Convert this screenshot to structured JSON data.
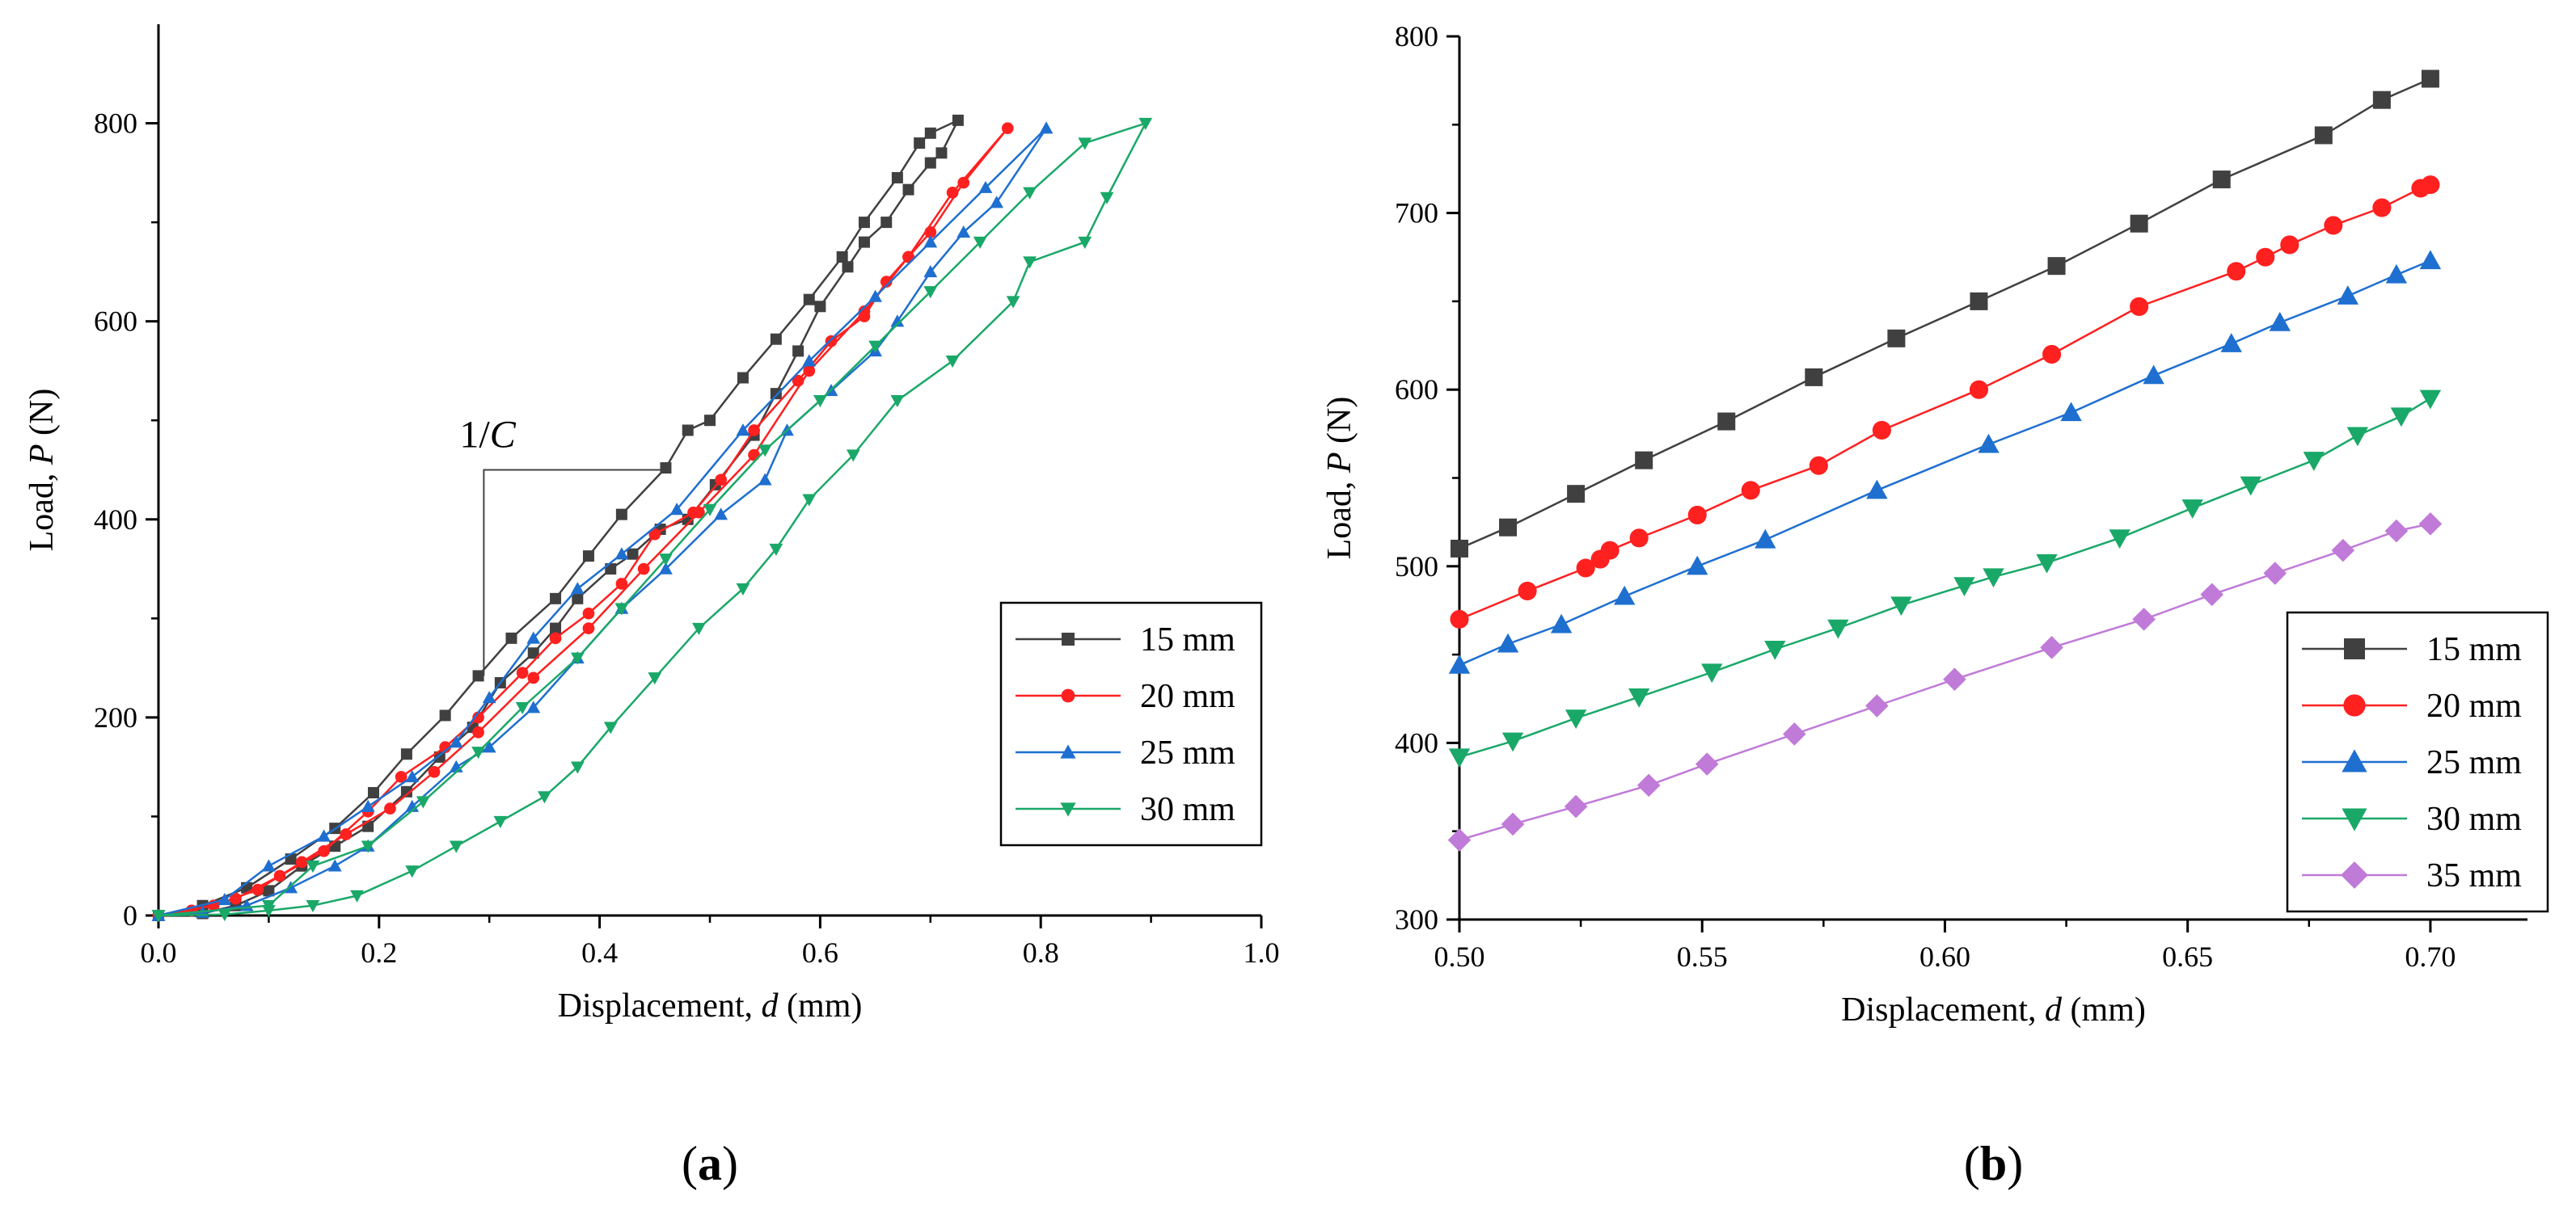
{
  "chart_data": [
    {
      "type": "line",
      "panel_label": "(a)",
      "xlabel": "Displacement, d (mm)",
      "ylabel": "Load, P (N)",
      "xlim": [
        0.0,
        1.0
      ],
      "ylim": [
        0,
        900
      ],
      "xticks": [
        "0.0",
        "0.2",
        "0.4",
        "0.6",
        "0.8",
        "1.0"
      ],
      "yticks": [
        "0",
        "200",
        "400",
        "600",
        "800"
      ],
      "grid": false,
      "legend_position": "bottom-right",
      "annotation": "1/C",
      "series": [
        {
          "name": "15 mm",
          "color": "#404040",
          "marker": "square",
          "x": [
            0.0,
            0.04,
            0.08,
            0.12,
            0.16,
            0.195,
            0.225,
            0.26,
            0.29,
            0.32,
            0.36,
            0.39,
            0.42,
            0.46,
            0.48,
            0.5,
            0.53,
            0.56,
            0.59,
            0.62,
            0.64,
            0.67,
            0.69,
            0.7,
            0.725,
            0.71,
            0.7,
            0.68,
            0.66,
            0.64,
            0.625,
            0.6,
            0.58,
            0.56,
            0.54,
            0.505,
            0.48,
            0.455,
            0.43,
            0.41,
            0.38,
            0.36,
            0.34,
            0.31,
            0.285,
            0.255,
            0.225,
            0.19,
            0.16,
            0.13,
            0.1,
            0.07,
            0.04,
            0.0
          ],
          "y": [
            0,
            10,
            28,
            57,
            88,
            124,
            163,
            202,
            242,
            280,
            320,
            363,
            405,
            452,
            490,
            500,
            543,
            582,
            622,
            665,
            700,
            745,
            780,
            790,
            803,
            770,
            760,
            733,
            700,
            680,
            655,
            615,
            570,
            527,
            485,
            435,
            400,
            390,
            365,
            350,
            320,
            290,
            265,
            235,
            190,
            160,
            125,
            90,
            70,
            50,
            25,
            10,
            2,
            0
          ]
        },
        {
          "name": "20 mm",
          "color": "#ff2020",
          "marker": "circle",
          "x": [
            0.0,
            0.05,
            0.09,
            0.13,
            0.17,
            0.21,
            0.25,
            0.29,
            0.34,
            0.39,
            0.44,
            0.49,
            0.54,
            0.59,
            0.64,
            0.68,
            0.72,
            0.77,
            0.73,
            0.7,
            0.68,
            0.66,
            0.64,
            0.61,
            0.58,
            0.54,
            0.51,
            0.485,
            0.45,
            0.42,
            0.39,
            0.36,
            0.33,
            0.29,
            0.26,
            0.22,
            0.19,
            0.15,
            0.11,
            0.07,
            0.03,
            0.0
          ],
          "y": [
            0,
            10,
            26,
            54,
            82,
            108,
            145,
            185,
            240,
            290,
            350,
            407,
            465,
            550,
            610,
            665,
            730,
            795,
            740,
            690,
            665,
            640,
            605,
            580,
            540,
            490,
            440,
            407,
            385,
            335,
            305,
            280,
            245,
            200,
            170,
            140,
            105,
            65,
            40,
            17,
            5,
            0
          ]
        },
        {
          "name": "25 mm",
          "color": "#1e6fd0",
          "marker": "triangle-up",
          "x": [
            0.0,
            0.06,
            0.1,
            0.15,
            0.19,
            0.23,
            0.27,
            0.3,
            0.34,
            0.38,
            0.42,
            0.47,
            0.53,
            0.59,
            0.65,
            0.7,
            0.75,
            0.805,
            0.76,
            0.73,
            0.7,
            0.67,
            0.65,
            0.61,
            0.57,
            0.55,
            0.51,
            0.46,
            0.42,
            0.38,
            0.34,
            0.3,
            0.27,
            0.23,
            0.19,
            0.16,
            0.12,
            0.08,
            0.04,
            0.0
          ],
          "y": [
            0,
            16,
            50,
            80,
            110,
            140,
            175,
            220,
            280,
            330,
            365,
            410,
            490,
            560,
            625,
            680,
            735,
            795,
            720,
            690,
            650,
            600,
            570,
            530,
            490,
            440,
            405,
            350,
            310,
            260,
            210,
            170,
            150,
            110,
            70,
            50,
            28,
            10,
            3,
            0
          ]
        },
        {
          "name": "30 mm",
          "color": "#1aa868",
          "marker": "triangle-down",
          "x": [
            0.0,
            0.1,
            0.14,
            0.19,
            0.24,
            0.29,
            0.33,
            0.38,
            0.42,
            0.46,
            0.5,
            0.55,
            0.6,
            0.65,
            0.7,
            0.745,
            0.79,
            0.84,
            0.895,
            0.86,
            0.84,
            0.79,
            0.775,
            0.72,
            0.67,
            0.63,
            0.59,
            0.56,
            0.53,
            0.49,
            0.45,
            0.41,
            0.38,
            0.35,
            0.31,
            0.27,
            0.23,
            0.18,
            0.14,
            0.1,
            0.06,
            0.0
          ],
          "y": [
            0,
            10,
            50,
            70,
            115,
            165,
            210,
            260,
            310,
            360,
            410,
            470,
            520,
            575,
            630,
            680,
            730,
            780,
            800,
            725,
            680,
            660,
            620,
            560,
            520,
            465,
            420,
            370,
            330,
            290,
            240,
            190,
            150,
            120,
            95,
            70,
            45,
            20,
            10,
            5,
            1,
            0
          ]
        }
      ]
    },
    {
      "type": "line",
      "panel_label": "(b)",
      "xlabel": "Displacement, d (mm)",
      "ylabel": "Load, P (N)",
      "xlim": [
        0.5,
        0.72
      ],
      "ylim": [
        300,
        800
      ],
      "xticks": [
        "0.50",
        "0.55",
        "0.60",
        "0.65",
        "0.70"
      ],
      "yticks": [
        "300",
        "400",
        "500",
        "600",
        "700",
        "800"
      ],
      "grid": false,
      "legend_position": "bottom-right",
      "series": [
        {
          "name": "15 mm",
          "color": "#404040",
          "marker": "square",
          "x": [
            0.5,
            0.51,
            0.524,
            0.538,
            0.555,
            0.573,
            0.59,
            0.607,
            0.623,
            0.64,
            0.657,
            0.678,
            0.69,
            0.7
          ],
          "y": [
            510,
            522,
            541,
            560,
            582,
            607,
            629,
            650,
            670,
            694,
            719,
            744,
            764,
            776
          ]
        },
        {
          "name": "20 mm",
          "color": "#ff2020",
          "marker": "circle",
          "x": [
            0.5,
            0.514,
            0.526,
            0.529,
            0.531,
            0.537,
            0.549,
            0.56,
            0.574,
            0.587,
            0.607,
            0.622,
            0.64,
            0.66,
            0.666,
            0.671,
            0.68,
            0.69,
            0.698,
            0.7
          ],
          "y": [
            470,
            486,
            499,
            504,
            509,
            516,
            529,
            543,
            557,
            577,
            600,
            620,
            647,
            667,
            675,
            682,
            693,
            703,
            714,
            716
          ]
        },
        {
          "name": "25 mm",
          "color": "#1e6fd0",
          "marker": "triangle-up",
          "x": [
            0.5,
            0.51,
            0.521,
            0.534,
            0.549,
            0.563,
            0.586,
            0.609,
            0.626,
            0.643,
            0.659,
            0.669,
            0.683,
            0.693,
            0.7
          ],
          "y": [
            444,
            456,
            467,
            483,
            500,
            515,
            543,
            569,
            587,
            608,
            626,
            638,
            653,
            665,
            673
          ]
        },
        {
          "name": "30 mm",
          "color": "#1aa868",
          "marker": "triangle-down",
          "x": [
            0.5,
            0.511,
            0.524,
            0.537,
            0.552,
            0.565,
            0.578,
            0.591,
            0.604,
            0.61,
            0.621,
            0.636,
            0.651,
            0.663,
            0.676,
            0.685,
            0.694,
            0.7
          ],
          "y": [
            392,
            401,
            414,
            426,
            440,
            453,
            465,
            478,
            489,
            494,
            502,
            516,
            533,
            546,
            560,
            574,
            585,
            595
          ]
        },
        {
          "name": "35 mm",
          "color": "#c07ad8",
          "marker": "diamond",
          "x": [
            0.5,
            0.511,
            0.524,
            0.539,
            0.551,
            0.569,
            0.586,
            0.602,
            0.622,
            0.641,
            0.655,
            0.668,
            0.682,
            0.693,
            0.7
          ],
          "y": [
            345,
            354,
            364,
            376,
            388,
            405,
            421,
            436,
            454,
            470,
            484,
            496,
            509,
            520,
            524
          ]
        }
      ]
    }
  ]
}
